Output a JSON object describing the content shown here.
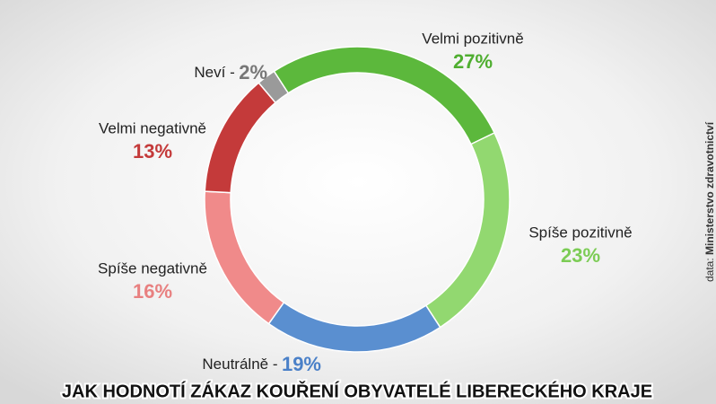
{
  "chart_data": {
    "type": "donut",
    "title": "JAK HODNOTÍ ZÁKAZ KOUŘENÍ OBYVATELÉ LIBERECKÉHO KRAJE",
    "categories": [
      "Velmi pozitivně",
      "Spíše pozitivně",
      "Neutrálně -",
      "Spíše negativně",
      "Velmi negativně",
      "Neví -"
    ],
    "values": [
      27,
      23,
      19,
      16,
      13,
      2
    ],
    "value_labels": [
      "27%",
      "23%",
      "19%",
      "16%",
      "13%",
      "2%"
    ],
    "colors": [
      "#5cb83c",
      "#92d870",
      "#5a8fd0",
      "#f08a8a",
      "#c43a3a",
      "#9a9a9a"
    ],
    "source": {
      "prefix": "data:",
      "name": "Ministerstvo zdravotnictví"
    }
  }
}
